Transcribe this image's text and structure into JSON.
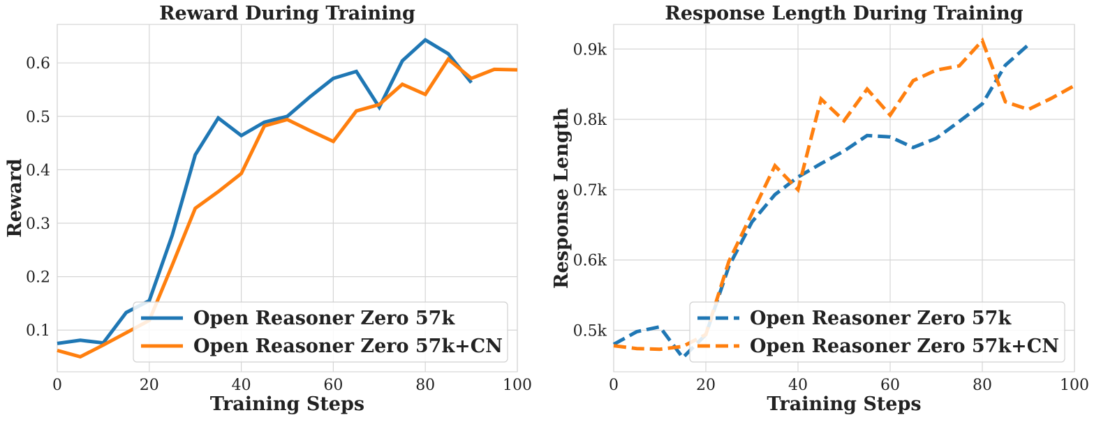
{
  "chart_data": [
    {
      "type": "line",
      "title": "Reward During Training",
      "xlabel": "Training Steps",
      "ylabel": "Reward",
      "xlim": [
        0,
        100
      ],
      "ylim": [
        0.022,
        0.672
      ],
      "xticks": [
        0,
        20,
        40,
        60,
        80,
        100
      ],
      "xtick_labels": [
        "0",
        "20",
        "40",
        "60",
        "80",
        "100"
      ],
      "yticks": [
        0.1,
        0.2,
        0.3,
        0.4,
        0.5,
        0.6
      ],
      "ytick_labels": [
        "0.1",
        "0.2",
        "0.3",
        "0.4",
        "0.5",
        "0.6"
      ],
      "grid": true,
      "legend_position": "lower-right",
      "series": [
        {
          "name": "Open Reasoner Zero 57k",
          "color": "#1f77b4",
          "style": "solid",
          "x": [
            0,
            5,
            10,
            15,
            20,
            25,
            30,
            35,
            40,
            45,
            50,
            55,
            60,
            65,
            70,
            75,
            80,
            85,
            90
          ],
          "y": [
            0.075,
            0.081,
            0.076,
            0.133,
            0.155,
            0.278,
            0.428,
            0.497,
            0.464,
            0.489,
            0.5,
            0.537,
            0.571,
            0.584,
            0.517,
            0.604,
            0.643,
            0.617,
            0.563
          ]
        },
        {
          "name": "Open Reasoner Zero 57k+CN",
          "color": "#ff7f0e",
          "style": "solid",
          "x": [
            0,
            5,
            10,
            15,
            20,
            25,
            30,
            35,
            40,
            45,
            50,
            55,
            60,
            65,
            70,
            75,
            80,
            85,
            90,
            95,
            100
          ],
          "y": [
            0.062,
            0.05,
            0.072,
            0.095,
            0.118,
            0.222,
            0.328,
            0.359,
            0.393,
            0.482,
            0.494,
            0.473,
            0.453,
            0.51,
            0.522,
            0.56,
            0.541,
            0.607,
            0.571,
            0.588,
            0.587
          ]
        }
      ]
    },
    {
      "type": "line",
      "title": "Response Length During Training",
      "xlabel": "Training Steps",
      "ylabel": "Response Length",
      "xlim": [
        0,
        100
      ],
      "ylim": [
        441,
        935
      ],
      "xticks": [
        0,
        20,
        40,
        60,
        80,
        100
      ],
      "xtick_labels": [
        "0",
        "20",
        "40",
        "60",
        "80",
        "100"
      ],
      "yticks": [
        500,
        600,
        700,
        800,
        900
      ],
      "ytick_labels": [
        "0.5k",
        "0.6k",
        "0.7k",
        "0.8k",
        "0.9k"
      ],
      "grid": true,
      "legend_position": "lower-right",
      "series": [
        {
          "name": "Open Reasoner Zero 57k",
          "color": "#1f77b4",
          "style": "dashed",
          "x": [
            0,
            5,
            10,
            15,
            20,
            25,
            30,
            35,
            40,
            45,
            50,
            55,
            60,
            65,
            70,
            75,
            80,
            85,
            90
          ],
          "y": [
            480,
            498,
            505,
            461,
            494,
            591,
            654,
            693,
            718,
            737,
            755,
            777,
            775,
            760,
            773,
            797,
            822,
            877,
            906
          ]
        },
        {
          "name": "Open Reasoner Zero 57k+CN",
          "color": "#ff7f0e",
          "style": "dashed",
          "x": [
            0,
            5,
            10,
            15,
            20,
            25,
            30,
            35,
            40,
            45,
            50,
            55,
            60,
            65,
            70,
            75,
            80,
            85,
            90,
            95,
            100
          ],
          "y": [
            478,
            474,
            473,
            477,
            494,
            598,
            666,
            734,
            700,
            829,
            798,
            843,
            806,
            855,
            870,
            876,
            912,
            825,
            814,
            830,
            848
          ]
        }
      ]
    }
  ]
}
